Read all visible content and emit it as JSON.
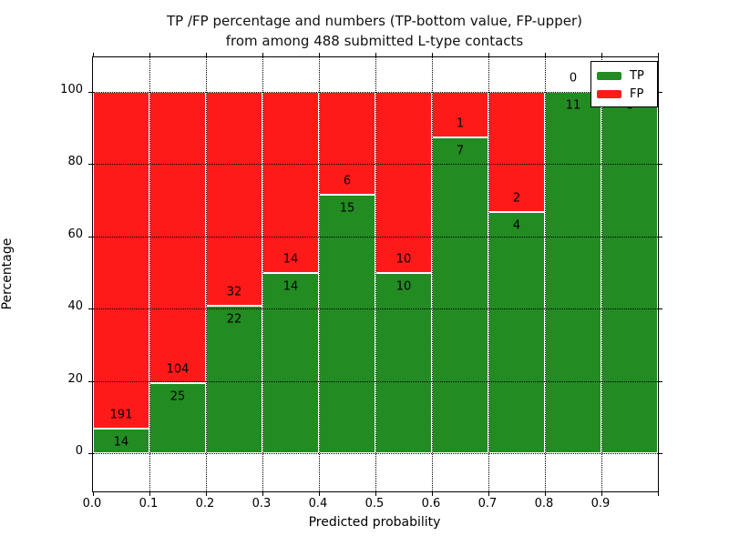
{
  "chart_data": {
    "type": "bar",
    "stacked_to_100_percent": true,
    "title_line1": "TP /FP percentage and numbers (TP-bottom value, FP-upper)",
    "title_line2": "from among 488 submitted L-type contacts",
    "xlabel": "Predicted probability",
    "ylabel": "Percentage",
    "categories": [
      "0.0-0.1",
      "0.1-0.2",
      "0.2-0.3",
      "0.3-0.4",
      "0.4-0.5",
      "0.5-0.6",
      "0.6-0.7",
      "0.7-0.8",
      "0.8-0.9",
      "0.9-1.0"
    ],
    "series": [
      {
        "name": "TP",
        "color": "#228b22",
        "values": [
          14,
          25,
          22,
          14,
          15,
          10,
          7,
          4,
          11,
          6
        ]
      },
      {
        "name": "FP",
        "color": "#ff1a1a",
        "values": [
          191,
          104,
          32,
          14,
          6,
          10,
          1,
          2,
          0,
          0
        ]
      }
    ],
    "total_contacts": 488,
    "x_tick_labels": [
      "0.0",
      "0.1",
      "0.2",
      "0.3",
      "0.4",
      "0.5",
      "0.6",
      "0.7",
      "0.8",
      "0.9"
    ],
    "y_ticks": [
      0,
      20,
      40,
      60,
      80,
      100
    ],
    "y_tick_labels": [
      "0",
      "20",
      "40",
      "60",
      "80",
      "100"
    ],
    "xlim": [
      0.0,
      1.0
    ],
    "ylim": [
      0,
      100
    ],
    "grid": true,
    "legend": {
      "position": "upper right",
      "entries": [
        {
          "label": "TP",
          "color": "#228b22"
        },
        {
          "label": "FP",
          "color": "#ff1a1a"
        }
      ]
    },
    "annotation_note": "FP count printed above TP/FP boundary, TP count below"
  }
}
